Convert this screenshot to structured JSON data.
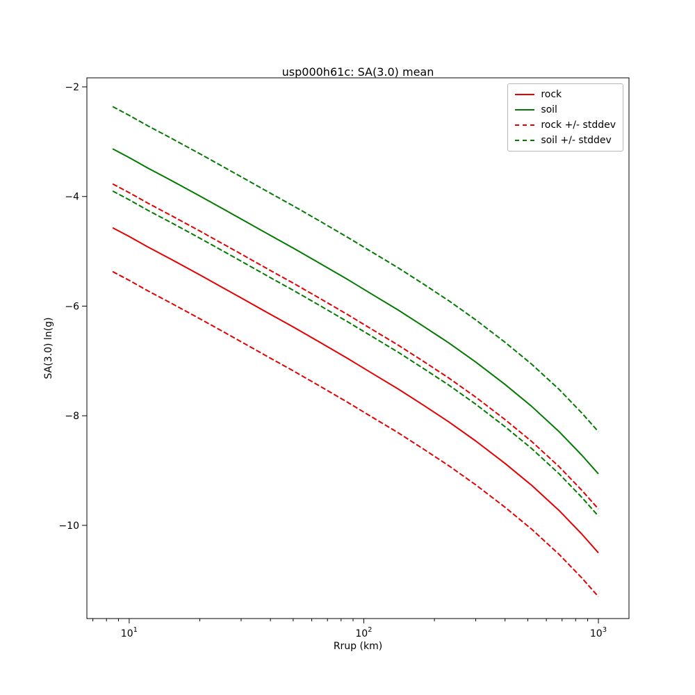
{
  "title": "usp000h61c: SA(3.0) mean",
  "axes": {
    "xlabel": "Rrup (km)",
    "ylabel": "SA(3.0) ln(g)",
    "x_scale": "log",
    "xlim": [
      6.6,
      1350
    ],
    "ylim": [
      -11.7,
      -1.835
    ],
    "grid": false,
    "x_major_ticks": [
      {
        "value": 10,
        "mantissa": "10",
        "exponent": "1"
      },
      {
        "value": 100,
        "mantissa": "10",
        "exponent": "2"
      },
      {
        "value": 1000,
        "mantissa": "10",
        "exponent": "3"
      }
    ],
    "y_ticks": [
      {
        "value": -2,
        "label": "−2"
      },
      {
        "value": -4,
        "label": "−4"
      },
      {
        "value": -6,
        "label": "−6"
      },
      {
        "value": -8,
        "label": "−8"
      },
      {
        "value": -10,
        "label": "−10"
      }
    ],
    "spine_color": "#000000"
  },
  "legend": {
    "position": "upper right",
    "items": [
      {
        "label": "rock",
        "color": "#e50000",
        "style": "solid"
      },
      {
        "label": "soil",
        "color": "#007a00",
        "style": "dashed_none",
        "line": "solid"
      },
      {
        "label": "rock +/- stddev",
        "color": "#e50000",
        "style": "dashed"
      },
      {
        "label": "soil +/- stddev",
        "color": "#007a00",
        "style": "dashed"
      }
    ]
  },
  "chart_data": {
    "type": "line",
    "title": "usp000h61c: SA(3.0) mean",
    "xlabel": "Rrup (km)",
    "ylabel": "SA(3.0) ln(g)",
    "x": [
      8.5,
      10,
      12,
      15,
      20,
      25,
      30,
      40,
      50,
      65,
      85,
      110,
      140,
      180,
      230,
      300,
      400,
      520,
      680,
      850,
      1000
    ],
    "series": [
      {
        "name": "rock",
        "color": "#e50000",
        "style": "solid",
        "values": [
          -4.57,
          -4.73,
          -4.92,
          -5.14,
          -5.43,
          -5.66,
          -5.85,
          -6.15,
          -6.38,
          -6.66,
          -6.95,
          -7.24,
          -7.51,
          -7.81,
          -8.11,
          -8.46,
          -8.87,
          -9.27,
          -9.73,
          -10.16,
          -10.5
        ]
      },
      {
        "name": "soil",
        "color": "#007a00",
        "style": "solid",
        "values": [
          -3.13,
          -3.29,
          -3.48,
          -3.7,
          -3.99,
          -4.22,
          -4.41,
          -4.71,
          -4.94,
          -5.22,
          -5.51,
          -5.8,
          -6.07,
          -6.37,
          -6.67,
          -7.02,
          -7.43,
          -7.83,
          -8.29,
          -8.72,
          -9.06
        ]
      },
      {
        "name": "rock + stddev",
        "color": "#e50000",
        "style": "dashed",
        "values": [
          -3.77,
          -3.93,
          -4.12,
          -4.34,
          -4.63,
          -4.86,
          -5.05,
          -5.35,
          -5.58,
          -5.86,
          -6.15,
          -6.44,
          -6.71,
          -7.01,
          -7.31,
          -7.66,
          -8.07,
          -8.47,
          -8.93,
          -9.36,
          -9.7
        ]
      },
      {
        "name": "rock - stddev",
        "color": "#e50000",
        "style": "dashed",
        "values": [
          -5.37,
          -5.53,
          -5.72,
          -5.94,
          -6.23,
          -6.46,
          -6.65,
          -6.95,
          -7.18,
          -7.46,
          -7.75,
          -8.04,
          -8.31,
          -8.61,
          -8.91,
          -9.26,
          -9.67,
          -10.07,
          -10.53,
          -10.96,
          -11.3
        ]
      },
      {
        "name": "soil + stddev",
        "color": "#007a00",
        "style": "dashed",
        "values": [
          -2.36,
          -2.52,
          -2.71,
          -2.93,
          -3.22,
          -3.45,
          -3.64,
          -3.94,
          -4.17,
          -4.45,
          -4.74,
          -5.03,
          -5.3,
          -5.6,
          -5.9,
          -6.25,
          -6.66,
          -7.06,
          -7.52,
          -7.95,
          -8.29
        ]
      },
      {
        "name": "soil - stddev",
        "color": "#007a00",
        "style": "dashed",
        "values": [
          -3.9,
          -4.06,
          -4.25,
          -4.47,
          -4.76,
          -4.99,
          -5.18,
          -5.48,
          -5.71,
          -5.99,
          -6.28,
          -6.57,
          -6.84,
          -7.14,
          -7.44,
          -7.79,
          -8.2,
          -8.6,
          -9.06,
          -9.49,
          -9.83
        ]
      }
    ],
    "legend_entries": [
      "rock",
      "soil",
      "rock +/- stddev",
      "soil +/- stddev"
    ],
    "ylim": [
      -11.7,
      -1.835
    ],
    "xlim": [
      6.6,
      1350
    ],
    "x_scale": "log",
    "grid": false
  }
}
